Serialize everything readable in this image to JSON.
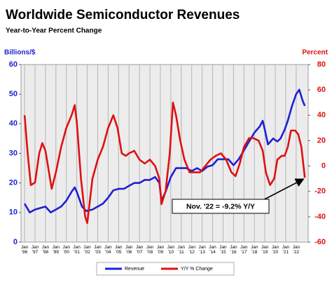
{
  "chart_data": {
    "type": "line",
    "title": "Worldwide Semiconductor Revenues",
    "subtitle": "Year-to-Year Percent Change",
    "y_label": "Billions/$",
    "y2_label": "Percent",
    "annotation": "Nov. '22 = -9.2% Y/Y",
    "grid": true,
    "legend": "bottom",
    "xlim": [
      1995.66,
      2023.15
    ],
    "xticks": [
      {
        "value": 1996,
        "label": "Jan '96"
      },
      {
        "value": 1997,
        "label": "Jan '97"
      },
      {
        "value": 1998,
        "label": "Jan '98"
      },
      {
        "value": 1999,
        "label": "Jan '99"
      },
      {
        "value": 2000,
        "label": "Jan '00"
      },
      {
        "value": 2001,
        "label": "Jan '01"
      },
      {
        "value": 2002,
        "label": "Jan '02"
      },
      {
        "value": 2003,
        "label": "Jan '03"
      },
      {
        "value": 2004,
        "label": "Jan '04"
      },
      {
        "value": 2005,
        "label": "Jan '05"
      },
      {
        "value": 2006,
        "label": "Jan '06"
      },
      {
        "value": 2007,
        "label": "Jan '07"
      },
      {
        "value": 2008,
        "label": "Jan '08"
      },
      {
        "value": 2009,
        "label": "Jan '09"
      },
      {
        "value": 2010,
        "label": "Jan '10"
      },
      {
        "value": 2011,
        "label": "Jan '11"
      },
      {
        "value": 2012,
        "label": "Jan '12"
      },
      {
        "value": 2013,
        "label": "Jan '13"
      },
      {
        "value": 2014,
        "label": "Jan '14"
      },
      {
        "value": 2015,
        "label": "Jan '15"
      },
      {
        "value": 2016,
        "label": "Jan '16"
      },
      {
        "value": 2017,
        "label": "Jan '17"
      },
      {
        "value": 2018,
        "label": "Jan '18"
      },
      {
        "value": 2019,
        "label": "Jan '19"
      },
      {
        "value": 2020,
        "label": "Jan '20"
      },
      {
        "value": 2021,
        "label": "Jan '21"
      },
      {
        "value": 2022,
        "label": "Jan '22"
      }
    ],
    "ylim": [
      0,
      60
    ],
    "yticks": [
      0,
      10,
      20,
      30,
      40,
      50,
      60
    ],
    "y2lim": [
      -60,
      80
    ],
    "y2ticks": [
      -60,
      -40,
      -20,
      0,
      20,
      40,
      60,
      80
    ],
    "series": [
      {
        "name": "Revenue",
        "color": "#1f1fd6",
        "x": [
          1996.0,
          1996.5,
          1997.0,
          1997.5,
          1998.0,
          1998.5,
          1999.0,
          1999.5,
          2000.0,
          2000.5,
          2000.8,
          2001.0,
          2001.5,
          2001.9,
          2002.5,
          2003.0,
          2003.5,
          2004.0,
          2004.5,
          2005.0,
          2005.5,
          2006.0,
          2006.5,
          2007.0,
          2007.5,
          2008.0,
          2008.5,
          2008.9,
          2009.1,
          2009.5,
          2010.0,
          2010.5,
          2011.0,
          2011.5,
          2012.0,
          2012.5,
          2013.0,
          2013.5,
          2014.0,
          2014.5,
          2015.0,
          2015.5,
          2016.0,
          2016.5,
          2017.0,
          2017.5,
          2018.0,
          2018.5,
          2018.8,
          2019.0,
          2019.3,
          2019.8,
          2020.2,
          2020.5,
          2020.9,
          2021.2,
          2021.6,
          2022.0,
          2022.3,
          2022.6,
          2022.83
        ],
        "values": [
          13,
          10,
          11,
          11.5,
          12,
          10,
          11,
          12,
          14,
          17,
          18.5,
          17,
          12,
          10.5,
          11,
          12,
          13,
          15,
          17.5,
          18,
          18,
          19,
          20,
          20,
          21,
          21,
          22,
          20,
          14,
          17,
          22,
          25,
          25,
          25,
          24,
          25,
          24,
          25.5,
          26,
          28,
          28,
          28,
          26,
          28,
          31,
          34,
          37,
          39,
          41,
          38,
          33,
          35,
          34,
          35,
          38,
          41,
          46,
          50,
          51.5,
          48,
          46
        ]
      },
      {
        "name": "Y/Y % Change",
        "color": "#e01010",
        "axis": "y2",
        "x": [
          1996.0,
          1996.3,
          1996.6,
          1997.0,
          1997.4,
          1997.7,
          1998.0,
          1998.6,
          1999.0,
          1999.5,
          2000.0,
          2000.5,
          2000.8,
          2001.0,
          2001.4,
          2001.8,
          2002.0,
          2002.5,
          2003.0,
          2003.5,
          2004.0,
          2004.5,
          2004.9,
          2005.3,
          2005.7,
          2006.0,
          2006.5,
          2007.0,
          2007.5,
          2008.0,
          2008.5,
          2008.9,
          2009.1,
          2009.5,
          2009.9,
          2010.2,
          2010.5,
          2010.9,
          2011.3,
          2011.8,
          2012.3,
          2012.8,
          2013.3,
          2013.8,
          2014.3,
          2014.8,
          2015.3,
          2015.8,
          2016.2,
          2016.6,
          2017.0,
          2017.5,
          2017.9,
          2018.4,
          2018.8,
          2019.1,
          2019.5,
          2019.9,
          2020.2,
          2020.6,
          2020.9,
          2021.2,
          2021.5,
          2021.9,
          2022.2,
          2022.5,
          2022.83
        ],
        "values": [
          40,
          10,
          -15,
          -13,
          10,
          18,
          12,
          -18,
          -5,
          15,
          30,
          40,
          48,
          35,
          -10,
          -40,
          -45,
          -10,
          5,
          15,
          30,
          40,
          30,
          10,
          8,
          10,
          12,
          5,
          2,
          5,
          0,
          -10,
          -30,
          -20,
          10,
          50,
          40,
          20,
          5,
          -5,
          -5,
          -5,
          0,
          5,
          8,
          10,
          5,
          -5,
          -8,
          2,
          15,
          22,
          22,
          20,
          12,
          -5,
          -15,
          -10,
          5,
          8,
          8,
          15,
          28,
          28,
          25,
          15,
          -9.2
        ]
      }
    ]
  }
}
